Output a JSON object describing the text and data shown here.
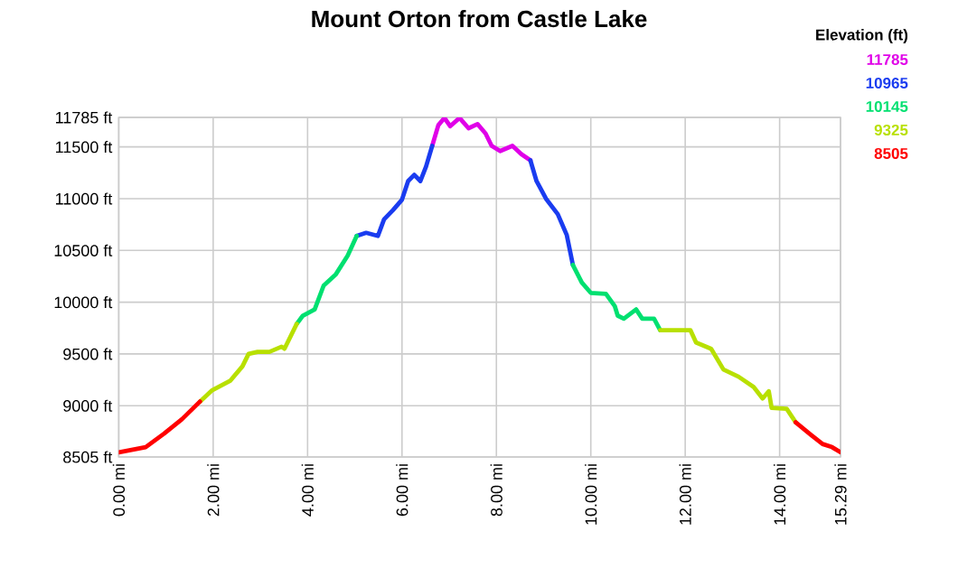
{
  "chart_data": {
    "type": "line",
    "title": "Mount Orton from Castle Lake",
    "legend_title": "Elevation (ft)",
    "legend": "top right",
    "x": [
      0,
      0.57,
      0.96,
      1.34,
      1.72,
      1.98,
      2.36,
      2.62,
      2.75,
      2.94,
      3.19,
      3.45,
      3.51,
      3.77,
      3.9,
      4.15,
      4.34,
      4.6,
      4.85,
      5.04,
      5.24,
      5.49,
      5.62,
      5.81,
      6.0,
      6.13,
      6.26,
      6.39,
      6.51,
      6.64,
      6.77,
      6.9,
      7.02,
      7.22,
      7.41,
      7.6,
      7.77,
      7.9,
      8.08,
      8.34,
      8.53,
      8.72,
      8.85,
      9.05,
      9.3,
      9.49,
      9.62,
      9.81,
      10.0,
      10.32,
      10.51,
      10.57,
      10.7,
      10.96,
      11.09,
      11.34,
      11.47,
      12.11,
      12.23,
      12.55,
      12.81,
      13.13,
      13.45,
      13.64,
      13.77,
      13.83,
      14.15,
      14.34,
      14.66,
      14.91,
      15.11,
      15.29
    ],
    "series": [
      {
        "name": "11785",
        "color": "#e000e8",
        "values": [
          null,
          null,
          null,
          null,
          null,
          null,
          null,
          null,
          null,
          null,
          null,
          null,
          null,
          null,
          null,
          null,
          null,
          null,
          null,
          null,
          null,
          null,
          null,
          null,
          null,
          null,
          null,
          null,
          null,
          11510,
          11710,
          11780,
          11700,
          11780,
          11680,
          11720,
          11630,
          11510,
          11460,
          11510,
          11430,
          11370,
          null,
          null,
          null,
          null,
          null,
          null,
          null,
          null,
          null,
          null,
          null,
          null,
          null,
          null,
          null,
          null,
          null,
          null,
          null,
          null,
          null,
          null,
          null,
          null,
          null,
          null,
          null,
          null,
          null,
          null
        ]
      },
      {
        "name": "10965",
        "color": "#1a3cf0",
        "values": [
          null,
          null,
          null,
          null,
          null,
          null,
          null,
          null,
          null,
          null,
          null,
          null,
          null,
          null,
          null,
          null,
          null,
          null,
          null,
          10640,
          10670,
          10640,
          10800,
          10890,
          10990,
          11170,
          11230,
          11170,
          11310,
          11510,
          null,
          null,
          null,
          null,
          null,
          null,
          null,
          null,
          null,
          null,
          null,
          11370,
          11170,
          11000,
          10850,
          10650,
          10360,
          null,
          null,
          null,
          null,
          null,
          null,
          null,
          null,
          null,
          null,
          null,
          null,
          null,
          null,
          null,
          null,
          null,
          null,
          null,
          null,
          null,
          null,
          null,
          null,
          null
        ]
      },
      {
        "name": "10145",
        "color": "#00e070",
        "values": [
          null,
          null,
          null,
          null,
          null,
          null,
          null,
          null,
          null,
          null,
          null,
          null,
          null,
          9790,
          9870,
          9930,
          10160,
          10270,
          10450,
          10640,
          null,
          null,
          null,
          null,
          null,
          null,
          null,
          null,
          null,
          null,
          null,
          null,
          null,
          null,
          null,
          null,
          null,
          null,
          null,
          null,
          null,
          null,
          null,
          null,
          null,
          null,
          10360,
          10190,
          10090,
          10080,
          9960,
          9870,
          9840,
          9930,
          9840,
          9840,
          9730,
          null,
          null,
          null,
          null,
          null,
          null,
          null,
          null,
          null,
          null,
          null,
          null,
          null,
          null,
          null
        ]
      },
      {
        "name": "9325",
        "color": "#b8e000",
        "values": [
          null,
          null,
          null,
          null,
          9040,
          9150,
          9240,
          9380,
          9500,
          9520,
          9520,
          9570,
          9550,
          9790,
          null,
          null,
          null,
          null,
          null,
          null,
          null,
          null,
          null,
          null,
          null,
          null,
          null,
          null,
          null,
          null,
          null,
          null,
          null,
          null,
          null,
          null,
          null,
          null,
          null,
          null,
          null,
          null,
          null,
          null,
          null,
          null,
          null,
          null,
          null,
          null,
          null,
          null,
          null,
          null,
          null,
          null,
          9730,
          9730,
          9610,
          9550,
          9350,
          9280,
          9180,
          9070,
          9140,
          8980,
          8970,
          8840,
          null,
          null,
          null,
          null
        ]
      },
      {
        "name": "8505",
        "color": "#ff0000",
        "values": [
          8550,
          8600,
          8730,
          8870,
          9040,
          null,
          null,
          null,
          null,
          null,
          null,
          null,
          null,
          null,
          null,
          null,
          null,
          null,
          null,
          null,
          null,
          null,
          null,
          null,
          null,
          null,
          null,
          null,
          null,
          null,
          null,
          null,
          null,
          null,
          null,
          null,
          null,
          null,
          null,
          null,
          null,
          null,
          null,
          null,
          null,
          null,
          null,
          null,
          null,
          null,
          null,
          null,
          null,
          null,
          null,
          null,
          null,
          null,
          null,
          null,
          null,
          null,
          null,
          null,
          null,
          null,
          null,
          8840,
          8720,
          8630,
          8600,
          8550
        ]
      }
    ],
    "xlim": [
      0,
      15.29
    ],
    "ylim": [
      8505,
      11785
    ],
    "xticks": [
      {
        "value": 0,
        "label": "0.00 mi"
      },
      {
        "value": 2,
        "label": "2.00 mi"
      },
      {
        "value": 4,
        "label": "4.00 mi"
      },
      {
        "value": 6,
        "label": "6.00 mi"
      },
      {
        "value": 8,
        "label": "8.00 mi"
      },
      {
        "value": 10,
        "label": "10.00 mi"
      },
      {
        "value": 12,
        "label": "12.00 mi"
      },
      {
        "value": 14,
        "label": "14.00 mi"
      },
      {
        "value": 15.29,
        "label": "15.29 mi"
      }
    ],
    "yticks": [
      {
        "value": 8505,
        "label": "8505 ft"
      },
      {
        "value": 9000,
        "label": "9000 ft"
      },
      {
        "value": 9500,
        "label": "9500 ft"
      },
      {
        "value": 10000,
        "label": "10000 ft"
      },
      {
        "value": 10500,
        "label": "10500 ft"
      },
      {
        "value": 11000,
        "label": "11000 ft"
      },
      {
        "value": 11500,
        "label": "11500 ft"
      },
      {
        "value": 11785,
        "label": "11785 ft"
      }
    ],
    "grid": true
  }
}
